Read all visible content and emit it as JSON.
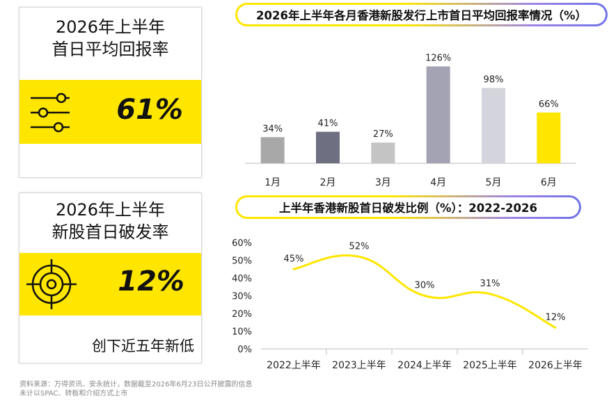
{
  "card_return": {
    "title_line1": "2026年上半年",
    "title_line2": "首日平均回报率",
    "value": "61%",
    "icon": "sliders-icon"
  },
  "card_break": {
    "title_line1": "2026年上半年",
    "title_line2": "新股首日破发率",
    "value": "12%",
    "icon": "target-icon",
    "note": "创下近五年新低"
  },
  "source": {
    "line1": "资料来源：万得资讯、安永统计，数据截至2026年6月23日公开披露的信息",
    "line2": "未计以SPAC、转板和介绍方式上市"
  },
  "colors": {
    "accent_yellow": "#ffe600",
    "pill_gradient_end": "#6f73e8"
  },
  "chart_data": [
    {
      "type": "bar",
      "title": "2026年上半年各月香港新股发行上市首日平均回报率情况（%）",
      "categories": [
        "1月",
        "2月",
        "3月",
        "4月",
        "5月",
        "6月"
      ],
      "values": [
        34,
        41,
        27,
        126,
        98,
        66
      ],
      "data_labels": [
        "34%",
        "41%",
        "27%",
        "126%",
        "98%",
        "66%"
      ],
      "bar_colors": [
        "#a8a8a8",
        "#6f6f82",
        "#c4c4c4",
        "#a3a3b3",
        "#d4d4dc",
        "#ffe600"
      ],
      "ylim": [
        0,
        140
      ],
      "grid": false
    },
    {
      "type": "line",
      "title": "上半年香港新股首日破发比例（%）：2022-2026",
      "categories": [
        "2022上半年",
        "2023上半年",
        "2024上半年",
        "2025上半年",
        "2026上半年"
      ],
      "values": [
        45,
        52,
        30,
        31,
        12
      ],
      "data_labels": [
        "45%",
        "52%",
        "30%",
        "31%",
        "12%"
      ],
      "y_ticks": [
        "0%",
        "10%",
        "20%",
        "30%",
        "40%",
        "50%",
        "60%"
      ],
      "ylim": [
        0,
        60
      ],
      "line_color": "#ffe600",
      "grid": false,
      "smooth": true
    }
  ]
}
